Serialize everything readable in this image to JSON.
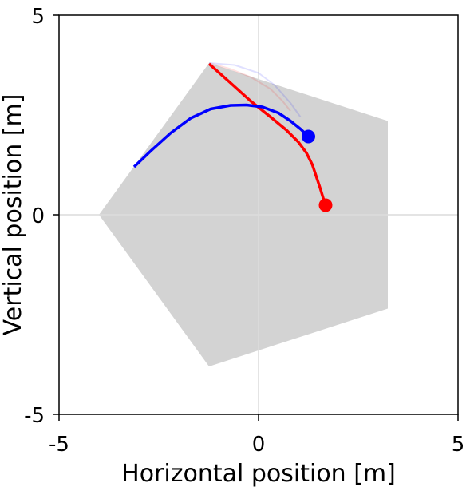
{
  "chart_data": {
    "type": "line",
    "xlabel": "Horizontal position [m]",
    "ylabel": "Vertical position [m]",
    "xlim": [
      -5,
      5
    ],
    "ylim": [
      -5,
      5
    ],
    "x_ticks": [
      "-5",
      "0",
      "5"
    ],
    "y_ticks": [
      "-5",
      "0",
      "5"
    ],
    "grid": "zero-lines",
    "colors": {
      "region": "#d3d3d3",
      "grid": "#dcdcdc",
      "series_red": "#ff0000",
      "series_blue": "#0000ff",
      "frame": "#000000"
    },
    "region": {
      "shape": "pentagon",
      "vertices": [
        [
          -4.0,
          0.0
        ],
        [
          -1.24,
          3.8
        ],
        [
          3.24,
          2.35
        ],
        [
          3.24,
          -2.35
        ],
        [
          -1.24,
          -3.8
        ]
      ]
    },
    "series": [
      {
        "color": "#ff0000",
        "x": [
          -1.24,
          -0.7,
          -0.2,
          0.3,
          0.7,
          1.0,
          1.2,
          1.35,
          1.45,
          1.55,
          1.62,
          1.68
        ],
        "y": [
          3.78,
          3.3,
          2.85,
          2.45,
          2.12,
          1.82,
          1.55,
          1.25,
          0.95,
          0.65,
          0.42,
          0.24
        ],
        "end_marker": true
      },
      {
        "color": "#0000ff",
        "x": [
          -3.12,
          -2.7,
          -2.2,
          -1.7,
          -1.2,
          -0.7,
          -0.3,
          0.1,
          0.5,
          0.8,
          1.05,
          1.25
        ],
        "y": [
          1.2,
          1.6,
          2.05,
          2.42,
          2.65,
          2.74,
          2.75,
          2.7,
          2.55,
          2.35,
          2.15,
          1.96
        ],
        "end_marker": true
      },
      {
        "color": "#ff0000",
        "faded": true,
        "x": [
          -1.24,
          -0.7,
          -0.2,
          0.3,
          0.6,
          0.8
        ],
        "y": [
          3.8,
          3.65,
          3.45,
          3.15,
          2.85,
          2.6
        ]
      },
      {
        "color": "#0000ff",
        "faded": true,
        "x": [
          -1.24,
          -0.6,
          0.0,
          0.4,
          0.8,
          1.05
        ],
        "y": [
          3.8,
          3.75,
          3.55,
          3.25,
          2.8,
          2.45
        ]
      }
    ]
  }
}
